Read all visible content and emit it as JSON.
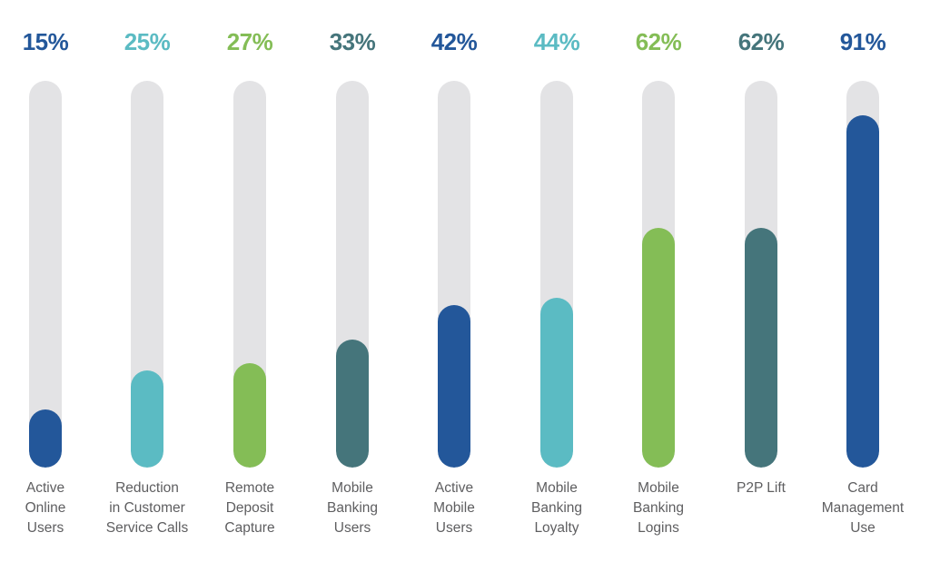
{
  "chart_data": {
    "type": "bar",
    "orientation": "vertical",
    "ylim": [
      0,
      100
    ],
    "title": "",
    "xlabel": "",
    "ylabel": "",
    "grid": false,
    "categories": [
      [
        "Active",
        "Online",
        "Users"
      ],
      [
        "Reduction",
        "in Customer",
        "Service Calls"
      ],
      [
        "Remote",
        "Deposit",
        "Capture"
      ],
      [
        "Mobile",
        "Banking",
        "Users"
      ],
      [
        "Active",
        "Mobile",
        "Users"
      ],
      [
        "Mobile",
        "Banking",
        "Loyalty"
      ],
      [
        "Mobile",
        "Banking",
        "Logins"
      ],
      [
        "P2P Lift"
      ],
      [
        "Card",
        "Management",
        "Use"
      ]
    ],
    "values": [
      15,
      25,
      27,
      33,
      42,
      44,
      62,
      62,
      91
    ],
    "value_labels": [
      "15%",
      "25%",
      "27%",
      "33%",
      "42%",
      "44%",
      "62%",
      "62%",
      "91%"
    ],
    "colors": [
      "#23579a",
      "#5bbbc3",
      "#84bd56",
      "#45757b",
      "#23579a",
      "#5bbbc3",
      "#84bd56",
      "#45757b",
      "#23579a"
    ],
    "track_color": "#e3e3e5",
    "label_color": "#5e5e60"
  }
}
